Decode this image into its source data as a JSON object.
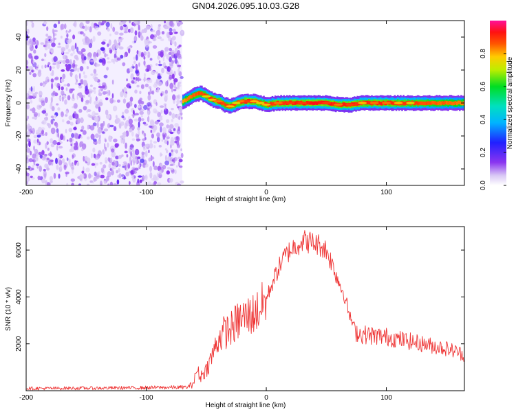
{
  "figure": {
    "title": "GN04.2026.095.10.03.G28"
  },
  "colors": {
    "axis": "#000000",
    "snr_line": "#ee3333",
    "noise_purple": "#7b2cf0",
    "background": "#ffffff"
  },
  "chart_data": [
    {
      "type": "heatmap",
      "title": "GN04.2026.095.10.03.G28",
      "xlabel": "Height of straight line (km)",
      "ylabel": "Frequency (Hz)",
      "xlim": [
        -200,
        165
      ],
      "ylim": [
        -50,
        50
      ],
      "xticks": [
        -200,
        -100,
        0,
        100
      ],
      "yticks": [
        -40,
        -20,
        0,
        20,
        40
      ],
      "colorbar": {
        "label": "Normalized spectral amplitude",
        "range": [
          0,
          1
        ],
        "ticks": [
          "0.0",
          "0.2",
          "0.4",
          "0.6",
          "0.8"
        ],
        "colormap": "rainbow (white-purple-blue-cyan-green-yellow-red-magenta)"
      },
      "noise_region": {
        "x_range": [
          -200,
          -70
        ],
        "freq_range": [
          -50,
          50
        ],
        "level": 0.2
      },
      "signal_track": {
        "height_km": [
          -70,
          -65,
          -60,
          -55,
          -50,
          -45,
          -40,
          -35,
          -30,
          -25,
          -20,
          -15,
          -10,
          -5,
          0,
          10,
          20,
          30,
          40,
          50,
          60,
          70,
          80,
          90,
          100,
          110,
          120,
          130,
          140,
          150,
          165
        ],
        "center_freq_hz": [
          1,
          3,
          5,
          6,
          4,
          2,
          1,
          -1,
          -2,
          0,
          1,
          1,
          1,
          0,
          -1,
          0,
          0,
          0,
          0,
          0,
          -1,
          -1,
          0,
          0,
          0,
          0,
          0,
          0,
          0,
          0,
          0
        ],
        "peak_amplitude": [
          0.5,
          0.6,
          0.7,
          0.75,
          0.8,
          0.85,
          0.9,
          0.75,
          0.85,
          0.8,
          0.9,
          0.95,
          0.85,
          0.8,
          0.85,
          0.9,
          0.95,
          0.95,
          1.0,
          0.95,
          0.9,
          0.95,
          0.85,
          0.9,
          0.9,
          0.85,
          0.8,
          0.75,
          0.7,
          0.65,
          0.6
        ]
      }
    },
    {
      "type": "line",
      "xlabel": "Height of straight line (km)",
      "ylabel": "SNR (10 * v/v)",
      "xlim": [
        -200,
        165
      ],
      "ylim": [
        0,
        7000
      ],
      "xticks": [
        -200,
        -100,
        0,
        100
      ],
      "yticks": [
        2000,
        4000,
        6000
      ],
      "series": [
        {
          "name": "SNR",
          "color": "#ee3333",
          "x": [
            -200,
            -180,
            -160,
            -140,
            -120,
            -100,
            -80,
            -65,
            -60,
            -58,
            -55,
            -50,
            -45,
            -40,
            -35,
            -30,
            -25,
            -20,
            -15,
            -10,
            -5,
            0,
            5,
            10,
            15,
            20,
            25,
            30,
            35,
            40,
            45,
            50,
            55,
            60,
            65,
            70,
            75,
            80,
            90,
            100,
            110,
            120,
            130,
            140,
            150,
            160,
            165
          ],
          "y": [
            100,
            100,
            110,
            110,
            120,
            130,
            140,
            150,
            400,
            900,
            600,
            900,
            1500,
            2200,
            2500,
            2600,
            2900,
            3100,
            3200,
            3300,
            3500,
            3900,
            4600,
            5200,
            5700,
            6000,
            6200,
            6400,
            6350,
            6300,
            6200,
            6000,
            5400,
            4700,
            4100,
            3100,
            2500,
            2400,
            2350,
            2300,
            2200,
            2100,
            2000,
            1900,
            1800,
            1650,
            1500
          ]
        }
      ]
    }
  ]
}
